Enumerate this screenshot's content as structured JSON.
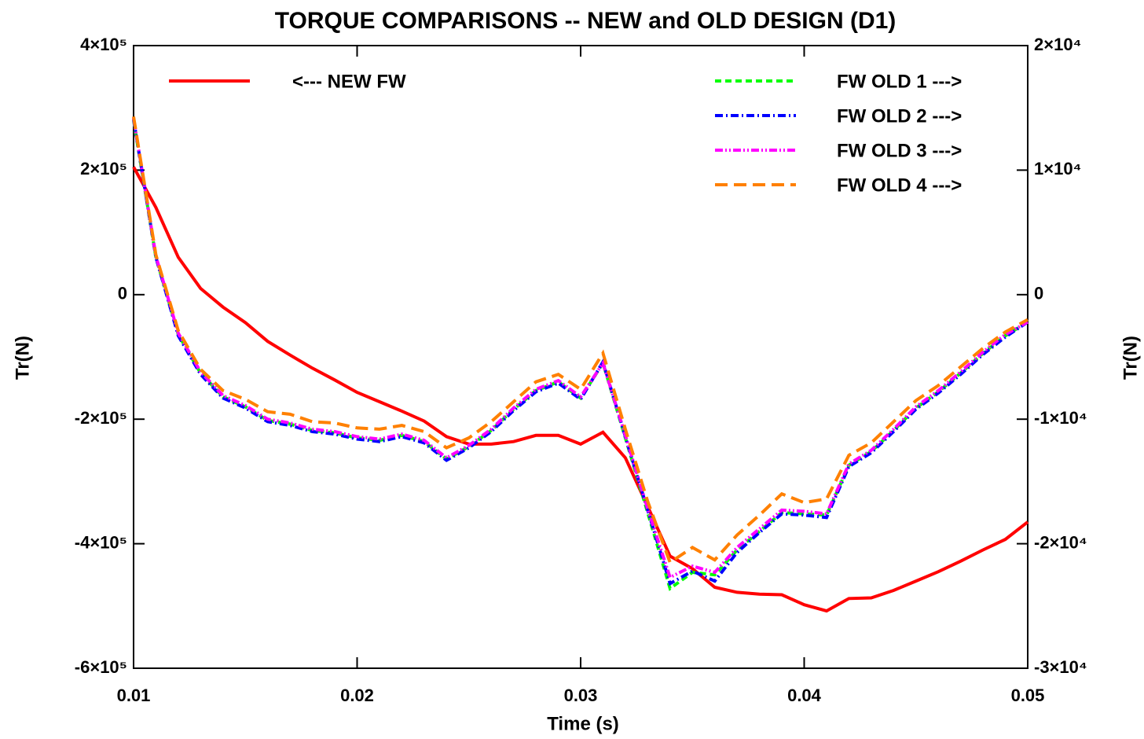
{
  "chart_data": {
    "type": "line",
    "title": "TORQUE COMPARISONS -- NEW and OLD DESIGN (D1)",
    "x_label": "Time (s)",
    "y_label": "Tr(N)",
    "y2_label": "Tr(N)",
    "xlim": [
      0.01,
      0.05
    ],
    "xticks": [
      0.01,
      0.02,
      0.03,
      0.04,
      0.05
    ],
    "ylim": [
      -600000,
      400000
    ],
    "yticks": [
      {
        "value": -600000,
        "label": "-6×10⁵"
      },
      {
        "value": -400000,
        "label": "-4×10⁵"
      },
      {
        "value": -200000,
        "label": "-2×10⁵"
      },
      0,
      {
        "value": 200000,
        "label": "2×10⁵"
      },
      {
        "value": 400000,
        "label": "4×10⁵"
      }
    ],
    "y2lim": [
      -30000,
      20000
    ],
    "y2ticks": [
      {
        "value": -30000,
        "label": "-3×10⁴"
      },
      {
        "value": -20000,
        "label": "-2×10⁴"
      },
      {
        "value": -10000,
        "label": "-1×10⁴"
      },
      0,
      {
        "value": 10000,
        "label": "1×10⁴"
      },
      {
        "value": 20000,
        "label": "2×10⁴"
      }
    ],
    "x": [
      0.01,
      0.011,
      0.012,
      0.013,
      0.014,
      0.015,
      0.016,
      0.017,
      0.018,
      0.019,
      0.02,
      0.021,
      0.022,
      0.023,
      0.024,
      0.025,
      0.026,
      0.027,
      0.028,
      0.029,
      0.03,
      0.031,
      0.032,
      0.033,
      0.034,
      0.035,
      0.036,
      0.037,
      0.038,
      0.039,
      0.04,
      0.041,
      0.042,
      0.043,
      0.044,
      0.045,
      0.046,
      0.047,
      0.048,
      0.049,
      0.05
    ],
    "series": [
      {
        "name": "<--- NEW FW",
        "color": "#ff0000",
        "dash": "none",
        "axis": "y",
        "values": [
          205000,
          140000,
          60000,
          10000,
          -20000,
          -45000,
          -75000,
          -97000,
          -118000,
          -137000,
          -157000,
          -172000,
          -187000,
          -203000,
          -228000,
          -240000,
          -240000,
          -236000,
          -226000,
          -226000,
          -240000,
          -221000,
          -262000,
          -340000,
          -420000,
          -440000,
          -470000,
          -478000,
          -481000,
          -482000,
          -498000,
          -508000,
          -488000,
          -487000,
          -475000,
          -460000,
          -445000,
          -428000,
          -410000,
          -393000,
          -365000
        ]
      },
      {
        "name": "FW OLD 1 --->",
        "color": "#00ff00",
        "dash": "8 5",
        "axis": "y2",
        "values": [
          14000,
          3000,
          -3200,
          -6300,
          -8200,
          -9000,
          -10100,
          -10400,
          -10900,
          -11100,
          -11500,
          -11700,
          -11300,
          -11800,
          -13200,
          -12200,
          -10900,
          -9200,
          -7700,
          -7000,
          -8300,
          -5500,
          -11500,
          -17500,
          -23600,
          -22300,
          -22500,
          -20500,
          -19000,
          -17500,
          -17600,
          -17700,
          -13700,
          -12600,
          -10900,
          -9100,
          -7800,
          -6300,
          -4700,
          -3300,
          -2200
        ]
      },
      {
        "name": "FW OLD 2 --->",
        "color": "#0000ff",
        "dash": "10 4 2 4",
        "axis": "y2",
        "values": [
          14100,
          3000,
          -3300,
          -6400,
          -8300,
          -9100,
          -10200,
          -10500,
          -11000,
          -11200,
          -11600,
          -11800,
          -11400,
          -11900,
          -13300,
          -12300,
          -11000,
          -9300,
          -7800,
          -7100,
          -8400,
          -5400,
          -11400,
          -17300,
          -23200,
          -22200,
          -23000,
          -20700,
          -19100,
          -17600,
          -17700,
          -17900,
          -13800,
          -12700,
          -11000,
          -9200,
          -7900,
          -6400,
          -4800,
          -3400,
          -2200
        ]
      },
      {
        "name": "FW OLD 3 --->",
        "color": "#ff00ff",
        "dash": "10 3 2 3 2 3",
        "axis": "y2",
        "values": [
          14200,
          3100,
          -3100,
          -6200,
          -8100,
          -8900,
          -10000,
          -10300,
          -10800,
          -11000,
          -11400,
          -11600,
          -11200,
          -11700,
          -13100,
          -12100,
          -10800,
          -9100,
          -7600,
          -6900,
          -8200,
          -5500,
          -11300,
          -17200,
          -22700,
          -21800,
          -22300,
          -20300,
          -18800,
          -17300,
          -17400,
          -17600,
          -13600,
          -12500,
          -10800,
          -9000,
          -7700,
          -6200,
          -4600,
          -3200,
          -2200
        ]
      },
      {
        "name": "FW OLD 4 --->",
        "color": "#ff8000",
        "dash": "16 8",
        "axis": "y2",
        "values": [
          14300,
          3200,
          -2900,
          -6000,
          -7700,
          -8400,
          -9400,
          -9600,
          -10200,
          -10300,
          -10700,
          -10800,
          -10500,
          -11000,
          -12300,
          -11500,
          -10200,
          -8600,
          -7000,
          -6400,
          -7600,
          -4700,
          -10800,
          -16600,
          -21500,
          -20300,
          -21300,
          -19300,
          -17700,
          -16000,
          -16700,
          -16400,
          -12900,
          -11900,
          -10200,
          -8500,
          -7300,
          -5800,
          -4300,
          -3000,
          -2000
        ]
      }
    ]
  }
}
